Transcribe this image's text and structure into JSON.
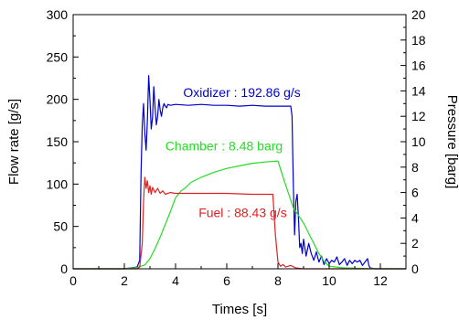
{
  "chart_data": {
    "type": "line",
    "xlabel": "Times [s]",
    "ylabel": "Flow rate [g/s]",
    "y2label": "Pressure [barg]",
    "xlim": [
      0,
      13
    ],
    "ylim": [
      0,
      300
    ],
    "y2lim": [
      0,
      20
    ],
    "xticks": [
      0,
      2,
      4,
      6,
      8,
      10,
      12
    ],
    "yticks": [
      0,
      50,
      100,
      150,
      200,
      250,
      300
    ],
    "y2ticks": [
      0,
      2,
      4,
      6,
      8,
      10,
      12,
      14,
      16,
      18,
      20
    ],
    "grid": false,
    "series": [
      {
        "name": "Oxidizer",
        "axis": "left",
        "color": "#0000cc",
        "x": [
          0,
          2.0,
          2.5,
          2.6,
          2.65,
          2.7,
          2.75,
          2.8,
          2.85,
          2.9,
          2.95,
          3.0,
          3.05,
          3.1,
          3.15,
          3.2,
          3.25,
          3.3,
          3.35,
          3.4,
          3.45,
          3.5,
          3.55,
          3.6,
          3.65,
          3.7,
          3.8,
          4.0,
          4.5,
          5.0,
          5.5,
          6.0,
          6.5,
          7.0,
          7.5,
          8.0,
          8.3,
          8.5,
          8.55,
          8.6,
          8.65,
          8.7,
          8.75,
          8.8,
          8.85,
          8.9,
          8.95,
          9.0,
          9.05,
          9.1,
          9.2,
          9.3,
          9.4,
          9.5,
          9.6,
          9.7,
          9.8,
          9.9,
          10.0,
          10.1,
          10.2,
          10.3,
          10.4,
          10.5,
          10.6,
          10.7,
          10.8,
          10.9,
          11.0,
          11.1,
          11.2,
          11.3,
          11.4,
          11.5,
          11.55,
          11.6,
          11.8,
          12.0,
          13.0
        ],
        "y": [
          0,
          0,
          2,
          10,
          110,
          170,
          195,
          160,
          140,
          175,
          228,
          200,
          165,
          178,
          215,
          190,
          170,
          180,
          200,
          187,
          180,
          190,
          195,
          192,
          190,
          194,
          193,
          194,
          193,
          194,
          193,
          193,
          192,
          193,
          192,
          192,
          192,
          192,
          180,
          100,
          40,
          80,
          88,
          60,
          25,
          30,
          18,
          35,
          25,
          15,
          30,
          18,
          10,
          20,
          8,
          15,
          5,
          12,
          6,
          10,
          8,
          14,
          5,
          8,
          12,
          4,
          10,
          6,
          10,
          8,
          10,
          4,
          8,
          12,
          4,
          1,
          0,
          0,
          0
        ]
      },
      {
        "name": "Chamber",
        "axis": "right",
        "color": "#22dd22",
        "x": [
          0,
          2.0,
          2.5,
          2.8,
          3.0,
          3.2,
          3.4,
          3.6,
          3.8,
          4.0,
          4.2,
          4.4,
          4.6,
          5.0,
          5.5,
          6.0,
          6.5,
          7.0,
          7.5,
          8.0,
          8.2,
          8.4,
          8.6,
          8.8,
          9.0,
          9.2,
          9.4,
          9.6,
          9.8,
          10.0,
          10.5,
          11.0,
          11.5,
          12.0,
          13.0
        ],
        "y": [
          0,
          0,
          0.1,
          0.3,
          0.8,
          1.6,
          2.5,
          3.5,
          4.5,
          5.6,
          6.1,
          6.4,
          6.8,
          7.2,
          7.6,
          7.9,
          8.1,
          8.3,
          8.4,
          8.48,
          7.2,
          6.0,
          4.8,
          4.2,
          3.6,
          2.8,
          2.0,
          1.2,
          0.6,
          0.2,
          0.08,
          0.04,
          0.02,
          0.01,
          0
        ]
      },
      {
        "name": "Fuel",
        "axis": "left",
        "color": "#dd2222",
        "x": [
          0,
          2.0,
          2.5,
          2.6,
          2.7,
          2.75,
          2.8,
          2.85,
          2.9,
          2.95,
          3.0,
          3.05,
          3.1,
          3.2,
          3.3,
          3.4,
          3.5,
          3.6,
          3.8,
          4.0,
          5.0,
          6.0,
          7.0,
          7.8,
          7.9,
          8.0,
          8.1,
          8.2,
          8.3,
          8.5,
          8.7,
          9.0,
          10.0,
          11.0,
          12.0,
          13.0
        ],
        "y": [
          0,
          0,
          0,
          2,
          30,
          80,
          108,
          95,
          104,
          90,
          98,
          88,
          96,
          90,
          95,
          89,
          92,
          88,
          90,
          89,
          89,
          89,
          88,
          88,
          40,
          8,
          3,
          5,
          2,
          4,
          1,
          0,
          0,
          0,
          0,
          0
        ]
      }
    ],
    "annotations": [
      {
        "label": "Oxidizer : 192.86 g/s",
        "x": 4.3,
        "y": 203,
        "color": "#0000cc"
      },
      {
        "label": "Chamber : 8.48 barg",
        "x": 3.6,
        "y": 140,
        "color": "#22dd22"
      },
      {
        "label": "Fuel : 88.43 g/s",
        "x": 4.9,
        "y": 61,
        "color": "#dd2222"
      }
    ]
  }
}
